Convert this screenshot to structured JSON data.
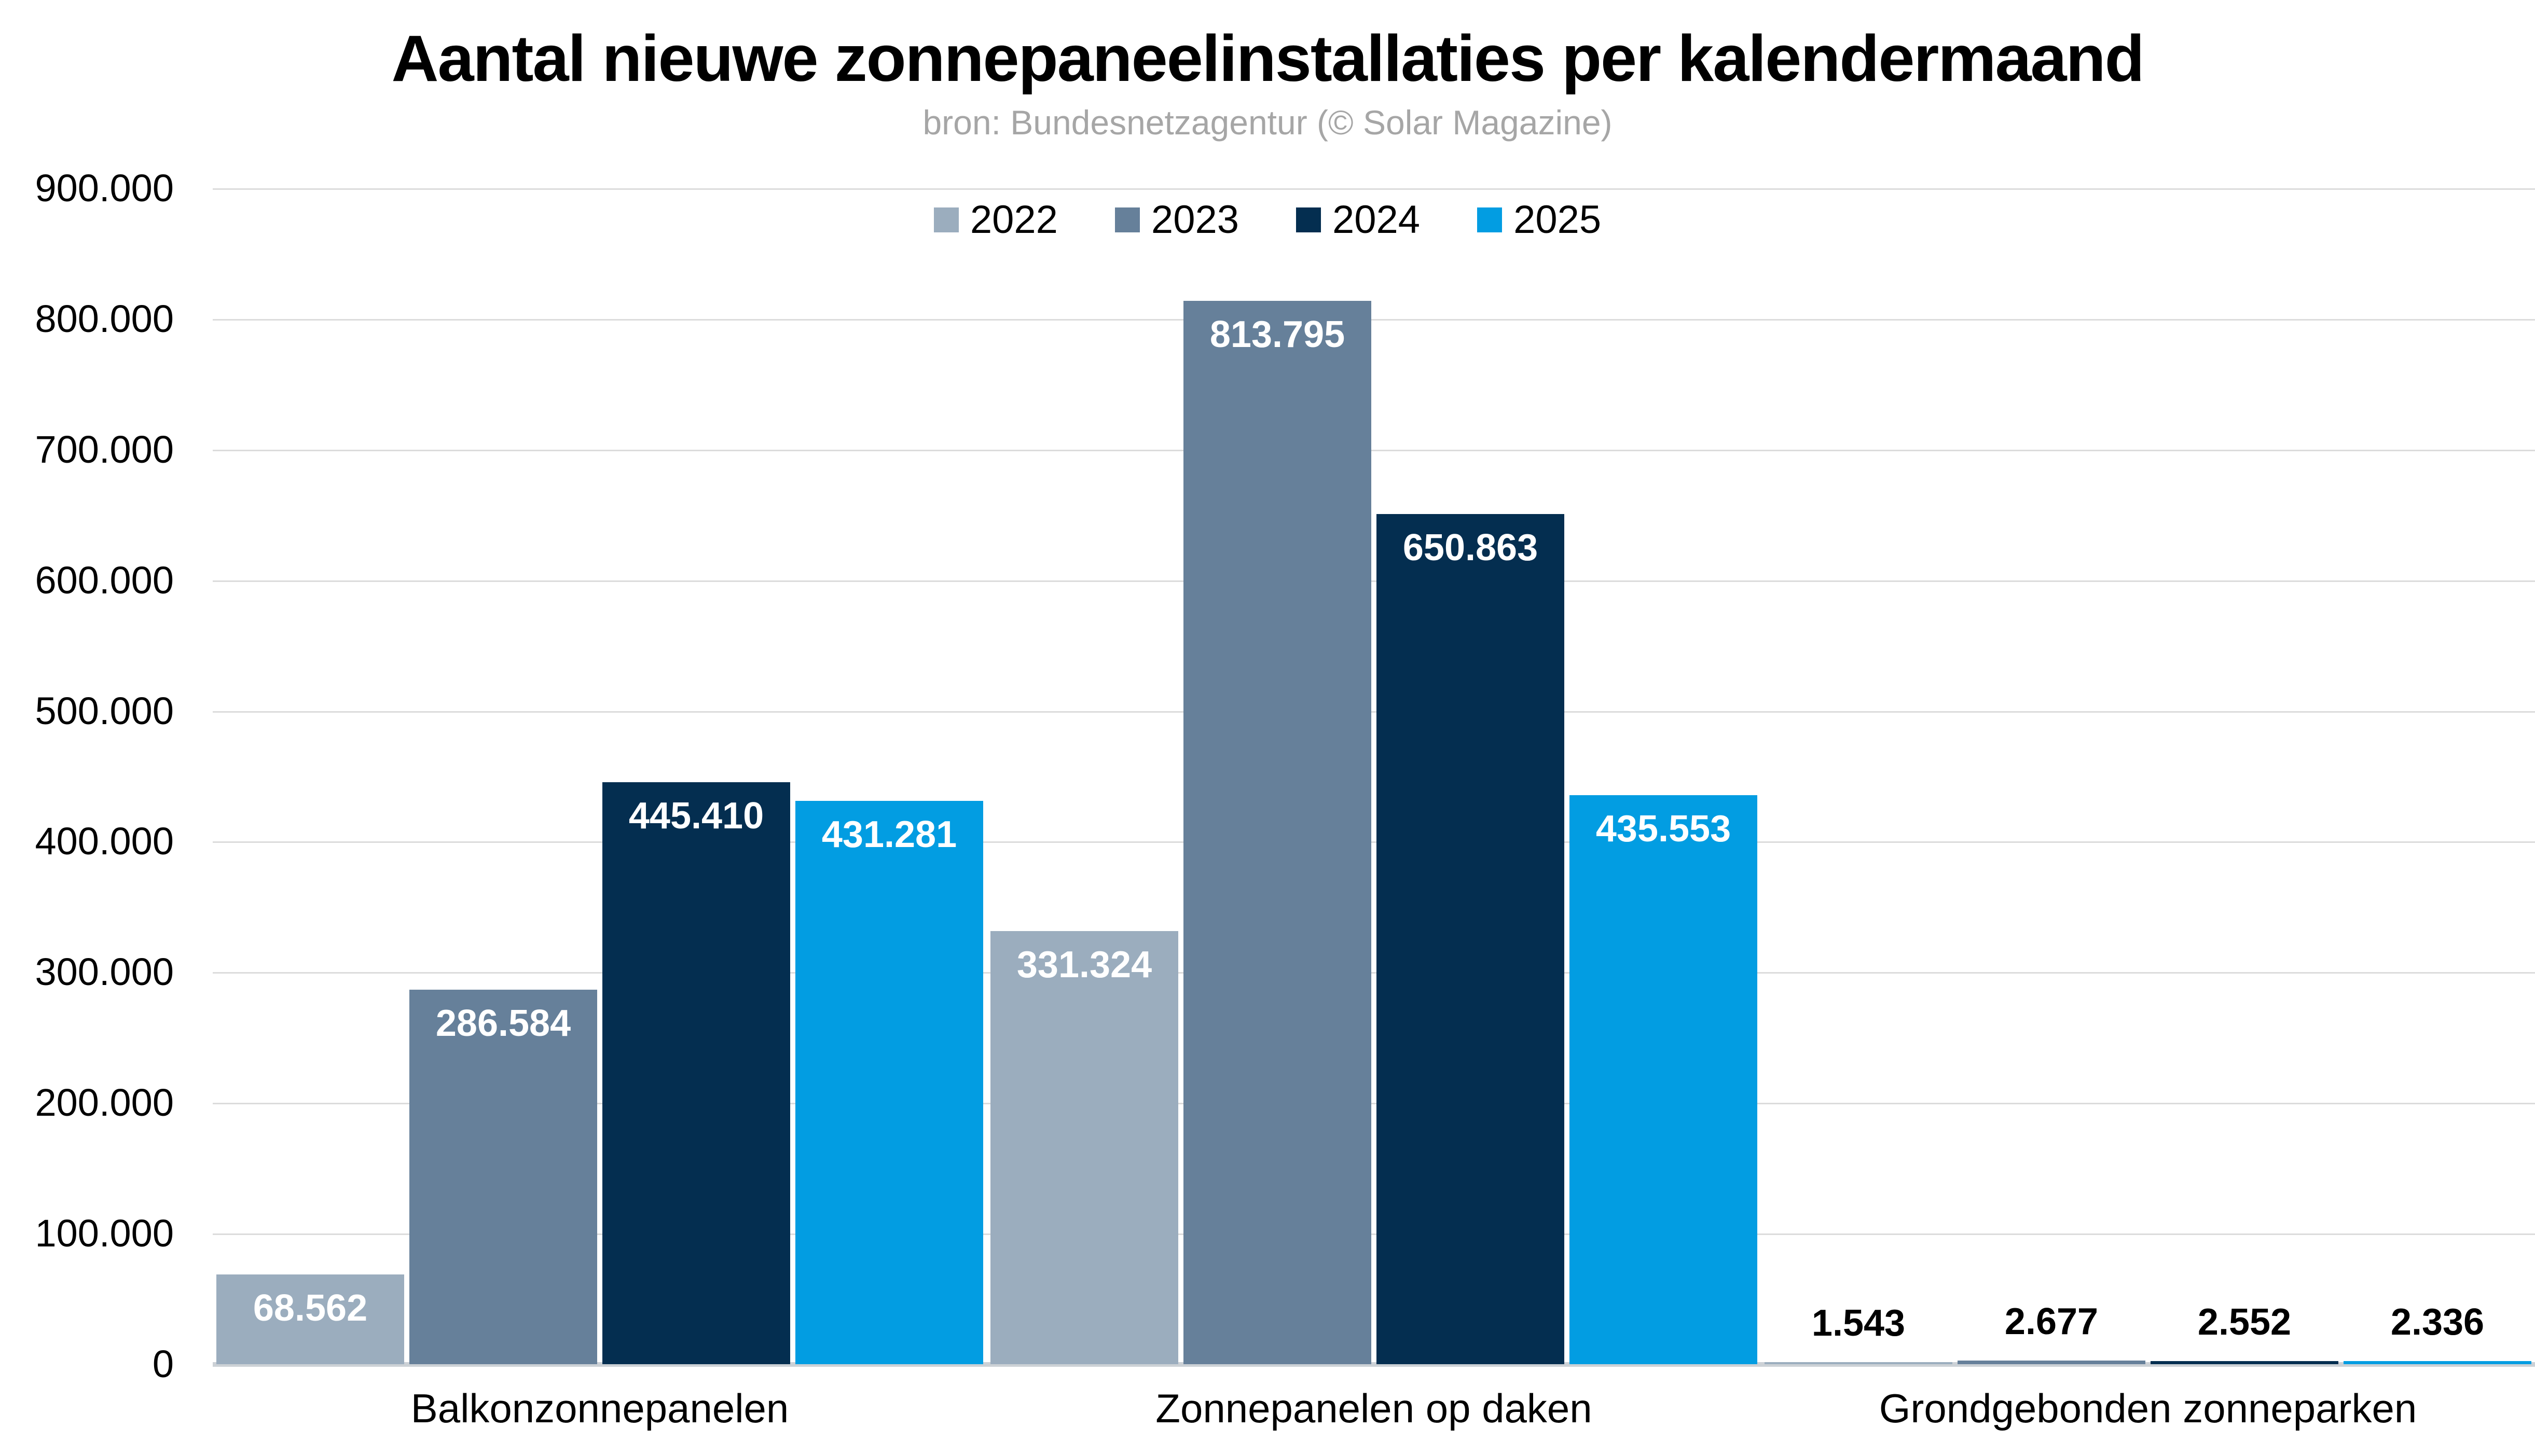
{
  "header": {
    "title": "Aantal nieuwe zonnepaneelinstallaties per kalendermaand",
    "subtitle": "bron: Bundesnetzagentur (© Solar Magazine)"
  },
  "chart_data": {
    "type": "bar",
    "title": "Aantal nieuwe zonnepaneelinstallaties per kalendermaand",
    "subtitle": "bron: Bundesnetzagentur (© Solar Magazine)",
    "categories": [
      "Balkonzonnepanelen",
      "Zonnepanelen op daken",
      "Grondgebonden zonneparken"
    ],
    "series": [
      {
        "name": "2022",
        "color": "#9badbe",
        "values": [
          68562,
          331324,
          1543
        ],
        "value_labels": [
          "68.562",
          "331.324",
          "1.543"
        ]
      },
      {
        "name": "2023",
        "color": "#66809a",
        "values": [
          286584,
          813795,
          2677
        ],
        "value_labels": [
          "286.584",
          "813.795",
          "2.677"
        ]
      },
      {
        "name": "2024",
        "color": "#042e50",
        "values": [
          445410,
          650863,
          2552
        ],
        "value_labels": [
          "445.410",
          "650.863",
          "2.552"
        ]
      },
      {
        "name": "2025",
        "color": "#029de2",
        "values": [
          431281,
          435553,
          2336
        ],
        "value_labels": [
          "431.281",
          "435.553",
          "2.336"
        ]
      }
    ],
    "ylim": [
      0,
      900000
    ],
    "ytick_labels": [
      "900.000",
      "800.000",
      "700.000",
      "600.000",
      "500.000",
      "400.000",
      "300.000",
      "200.000",
      "100.000",
      "0"
    ],
    "grid": "horizontal",
    "legend_position": "top-center",
    "colors": {
      "background": "#ffffff",
      "grid": "#dcdcdc",
      "baseline": "#ccd1d6",
      "subtitle_text": "#a6a6a6",
      "axis_text": "#000000",
      "value_label_inside": "#ffffff",
      "value_label_outside": "#000000"
    }
  }
}
